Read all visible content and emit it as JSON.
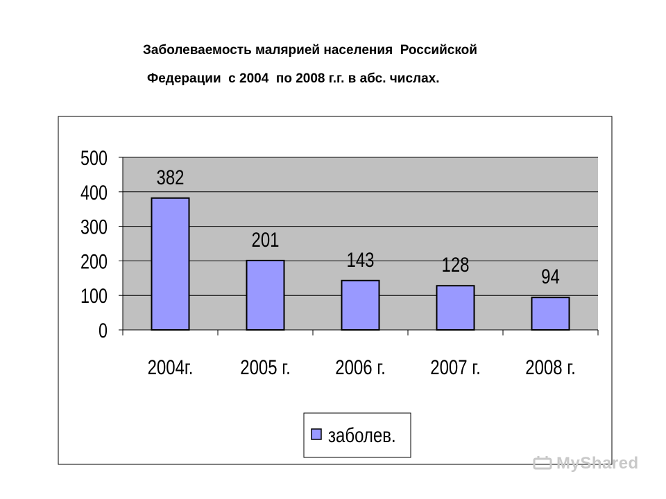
{
  "title_lines": [
    "Заболеваемость малярией населения  Российской",
    "Федерации  с 2004  по 2008 г.г. в абс. числах."
  ],
  "watermark": "MyShared",
  "colors": {
    "bar_fill": "#9999ff",
    "plot_background": "#c0c0c0",
    "gridline": "#000000"
  },
  "chart_data": {
    "type": "bar",
    "title": "Заболеваемость малярией населения  Российской Федерации  с 2004  по 2008 г.г. в абс. числах.",
    "categories": [
      "2004г.",
      "2005 г.",
      "2006 г.",
      "2007 г.",
      "2008 г."
    ],
    "series": [
      {
        "name": "заболев.",
        "values": [
          382,
          201,
          143,
          128,
          94
        ]
      }
    ],
    "data_labels": [
      "382",
      "201",
      "143",
      "128",
      "94"
    ],
    "y_ticks": [
      "0",
      "100",
      "200",
      "300",
      "400",
      "500"
    ],
    "ylim": [
      0,
      500
    ],
    "xlabel": "",
    "ylabel": "",
    "grid": true,
    "legend_position": "bottom"
  }
}
